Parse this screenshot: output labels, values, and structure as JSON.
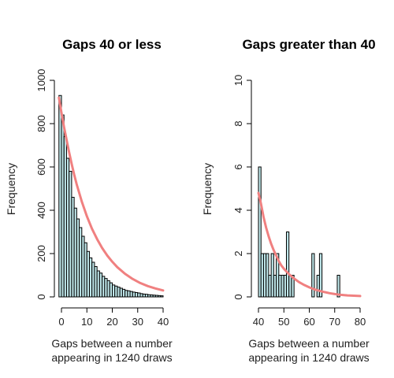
{
  "chart_data": [
    {
      "type": "bar",
      "title": "Gaps 40 or less",
      "xlabel": [
        "Gaps between a number",
        "appearing in 1240 draws"
      ],
      "ylabel": "Frequency",
      "xlim": [
        0,
        40
      ],
      "ylim": [
        0,
        1000
      ],
      "xticks": [
        0,
        10,
        20,
        30,
        40
      ],
      "yticks": [
        0,
        200,
        400,
        600,
        800,
        1000
      ],
      "bin_width": 1,
      "bin_starts": [
        -1,
        0,
        1,
        2,
        3,
        4,
        5,
        6,
        7,
        8,
        9,
        10,
        11,
        12,
        13,
        14,
        15,
        16,
        17,
        18,
        19,
        20,
        21,
        22,
        23,
        24,
        25,
        26,
        27,
        28,
        29,
        30,
        31,
        32,
        33,
        34,
        35,
        36,
        37,
        38,
        39
      ],
      "values": [
        930,
        840,
        740,
        640,
        580,
        460,
        410,
        360,
        320,
        280,
        250,
        210,
        180,
        160,
        140,
        120,
        110,
        95,
        85,
        75,
        65,
        55,
        50,
        45,
        40,
        35,
        30,
        28,
        25,
        22,
        20,
        18,
        15,
        13,
        12,
        10,
        9,
        8,
        7,
        6,
        5
      ],
      "fit_curve": {
        "name": "",
        "color": "#f08080",
        "x": [
          -1,
          0,
          1,
          2,
          3,
          4,
          5,
          6,
          8,
          10,
          12,
          14,
          16,
          18,
          20,
          22,
          25,
          28,
          31,
          34,
          37,
          40
        ],
        "y": [
          920,
          850,
          785,
          725,
          668,
          615,
          565,
          520,
          440,
          372,
          315,
          267,
          226,
          191,
          162,
          137,
          107,
          83,
          64,
          50,
          39,
          30
        ]
      },
      "bar_fill": "#bfe7ea",
      "bar_stroke": "#000000"
    },
    {
      "type": "bar",
      "title": "Gaps greater than 40",
      "xlabel": [
        "Gaps between a number",
        "appearing in 1240 draws"
      ],
      "ylabel": "Frequency",
      "xlim": [
        40,
        80
      ],
      "ylim": [
        0,
        10
      ],
      "xticks": [
        40,
        50,
        60,
        70,
        80
      ],
      "yticks": [
        0,
        2,
        4,
        6,
        8,
        10
      ],
      "bin_width": 1,
      "bin_starts": [
        40,
        41,
        42,
        43,
        44,
        45,
        46,
        47,
        48,
        49,
        50,
        51,
        52,
        53,
        54,
        55,
        56,
        57,
        58,
        59,
        60,
        61,
        62,
        63,
        64,
        65,
        66,
        67,
        68,
        69,
        70,
        71,
        72,
        73,
        74
      ],
      "values": [
        6,
        2,
        2,
        2,
        1,
        2,
        1,
        2,
        1,
        1,
        1,
        3,
        1,
        1,
        0,
        0,
        0,
        0,
        0,
        0,
        0,
        2,
        0,
        1,
        2,
        0,
        0,
        0,
        0,
        0,
        0,
        1,
        0,
        0,
        0
      ],
      "fit_curve": {
        "name": "",
        "color": "#f08080",
        "x": [
          40,
          41,
          42,
          43,
          44,
          45,
          46,
          47,
          48,
          49,
          50,
          52,
          54,
          56,
          58,
          60,
          62,
          64,
          66,
          68,
          70,
          72,
          75,
          80
        ],
        "y": [
          4.8,
          4.3,
          3.7,
          3.2,
          2.8,
          2.45,
          2.15,
          1.9,
          1.65,
          1.45,
          1.3,
          1.05,
          0.85,
          0.68,
          0.55,
          0.44,
          0.35,
          0.28,
          0.22,
          0.17,
          0.13,
          0.1,
          0.07,
          0.04
        ]
      },
      "bar_fill": "#bfe7ea",
      "bar_stroke": "#000000"
    }
  ]
}
